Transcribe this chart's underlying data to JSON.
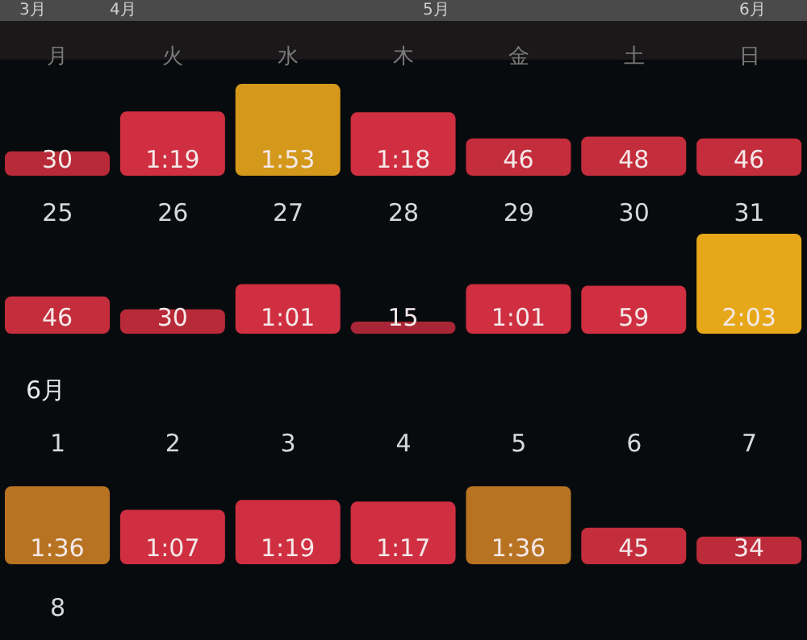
{
  "chart_data": [
    {
      "type": "bar",
      "annotations": [
        "3月",
        "4月",
        "5月",
        "6月"
      ],
      "categories": [
        "月",
        "火",
        "水",
        "木",
        "金",
        "土",
        "日"
      ],
      "values": [
        30,
        79,
        113,
        78,
        46,
        48,
        46
      ],
      "value_labels": [
        "30",
        "1:19",
        "1:53",
        "1:18",
        "46",
        "48",
        "46"
      ],
      "colors": [
        "#b82a38",
        "#cf2f40",
        "#d4981a",
        "#cf2f40",
        "#c42d3c",
        "#c42d3c",
        "#c42d3c"
      ]
    },
    {
      "type": "bar",
      "categories": [
        "25",
        "26",
        "27",
        "28",
        "29",
        "30",
        "31"
      ],
      "values": [
        46,
        30,
        61,
        15,
        61,
        59,
        123
      ],
      "value_labels": [
        "46",
        "30",
        "1:01",
        "15",
        "1:01",
        "59",
        "2:03"
      ],
      "colors": [
        "#c42d3c",
        "#b82a38",
        "#cf2f40",
        "#a82636",
        "#cf2f40",
        "#cf2f40",
        "#e6a818"
      ]
    },
    {
      "type": "bar",
      "title": "6月",
      "annotations": [
        "8"
      ],
      "categories": [
        "1",
        "2",
        "3",
        "4",
        "5",
        "6",
        "7"
      ],
      "values": [
        96,
        67,
        79,
        77,
        96,
        45,
        34
      ],
      "value_labels": [
        "1:36",
        "1:07",
        "1:19",
        "1:17",
        "1:36",
        "45",
        "34"
      ],
      "colors": [
        "#b87322",
        "#cf2f40",
        "#cf2f40",
        "#cf2f40",
        "#b87322",
        "#c42d3c",
        "#bb2b3a"
      ]
    }
  ]
}
